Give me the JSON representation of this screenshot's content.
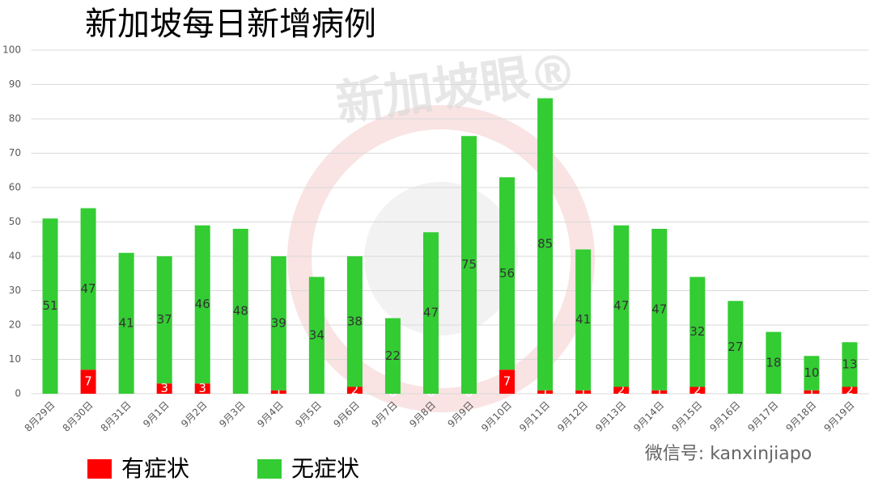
{
  "chart_data": {
    "type": "stacked_bar",
    "title": "新加坡每日新增病例",
    "categories": [
      "8月29日",
      "8月30日",
      "8月31日",
      "9月1日",
      "9月2日",
      "9月3日",
      "9月4日",
      "9月5日",
      "9月6日",
      "9月7日",
      "9月8日",
      "9月9日",
      "9月10日",
      "9月11日",
      "9月12日",
      "9月13日",
      "9月14日",
      "9月15日",
      "9月16日",
      "9月17日",
      "9月18日",
      "9月19日"
    ],
    "series": [
      {
        "name": "有症状",
        "color": "#ff0000",
        "values": [
          0,
          7,
          0,
          3,
          3,
          0,
          1,
          0,
          2,
          0,
          0,
          0,
          7,
          1,
          1,
          2,
          1,
          2,
          0,
          0,
          1,
          2
        ]
      },
      {
        "name": "无症状",
        "color": "#33cc33",
        "values": [
          51,
          47,
          41,
          37,
          46,
          48,
          39,
          34,
          38,
          22,
          47,
          75,
          56,
          85,
          41,
          47,
          47,
          32,
          27,
          18,
          10,
          13
        ]
      }
    ],
    "ylim": [
      0,
      100
    ],
    "yticks": [
      0,
      10,
      20,
      30,
      40,
      50,
      60,
      70,
      80,
      90,
      100
    ],
    "grid": true,
    "watermark": "新加坡眼®",
    "credit": "微信号: kanxinjiapo"
  }
}
